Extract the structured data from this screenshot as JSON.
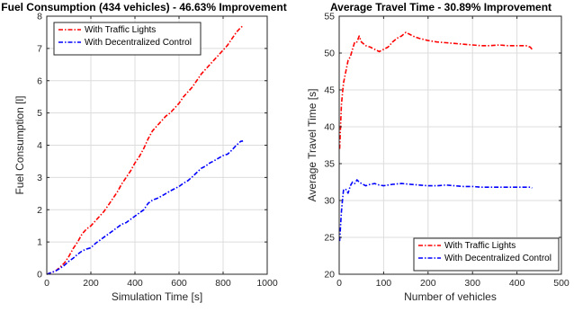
{
  "chart_data": [
    {
      "type": "line",
      "title": "Fuel Consumption (434 vehicles) - 46.63% Improvement",
      "xlabel": "Simulation Time [s]",
      "ylabel": "Fuel Consumption [l]",
      "xlim": [
        0,
        1000
      ],
      "ylim": [
        0,
        8
      ],
      "xticks": [
        0,
        200,
        400,
        600,
        800,
        1000
      ],
      "yticks": [
        0,
        1,
        2,
        3,
        4,
        5,
        6,
        7,
        8
      ],
      "grid": true,
      "legend_position": "top-left",
      "series": [
        {
          "name": "With Traffic Lights",
          "color": "#ff0000",
          "x": [
            0,
            20,
            40,
            60,
            80,
            100,
            120,
            140,
            160,
            180,
            200,
            220,
            240,
            260,
            280,
            300,
            320,
            340,
            360,
            380,
            400,
            420,
            440,
            460,
            480,
            500,
            520,
            540,
            560,
            580,
            600,
            620,
            640,
            660,
            680,
            700,
            720,
            740,
            760,
            780,
            800,
            820,
            840,
            860,
            880,
            890
          ],
          "y": [
            0,
            0.05,
            0.1,
            0.22,
            0.35,
            0.55,
            0.8,
            1.0,
            1.25,
            1.4,
            1.5,
            1.65,
            1.8,
            1.95,
            2.15,
            2.35,
            2.55,
            2.8,
            3.0,
            3.2,
            3.45,
            3.65,
            3.9,
            4.2,
            4.45,
            4.6,
            4.75,
            4.9,
            5.0,
            5.15,
            5.3,
            5.5,
            5.65,
            5.8,
            6.0,
            6.2,
            6.35,
            6.5,
            6.65,
            6.8,
            6.95,
            7.1,
            7.3,
            7.5,
            7.65,
            7.7
          ]
        },
        {
          "name": "With Decentralized Control",
          "color": "#0000ff",
          "x": [
            0,
            20,
            40,
            60,
            80,
            100,
            120,
            140,
            160,
            180,
            200,
            220,
            240,
            260,
            280,
            300,
            320,
            340,
            360,
            380,
            400,
            420,
            440,
            460,
            480,
            500,
            520,
            540,
            560,
            580,
            600,
            620,
            640,
            660,
            680,
            700,
            720,
            740,
            760,
            780,
            800,
            820,
            840,
            860,
            880,
            890
          ],
          "y": [
            0,
            0.05,
            0.1,
            0.18,
            0.28,
            0.4,
            0.5,
            0.62,
            0.72,
            0.78,
            0.82,
            0.95,
            1.05,
            1.15,
            1.25,
            1.35,
            1.45,
            1.55,
            1.6,
            1.7,
            1.8,
            1.9,
            2.0,
            2.2,
            2.3,
            2.35,
            2.42,
            2.5,
            2.58,
            2.65,
            2.72,
            2.82,
            2.9,
            3.02,
            3.15,
            3.28,
            3.35,
            3.45,
            3.52,
            3.6,
            3.68,
            3.72,
            3.85,
            4.0,
            4.12,
            4.13
          ]
        }
      ]
    },
    {
      "type": "line",
      "title": "Average Travel Time - 30.89% Improvement",
      "xlabel": "Number of vehicles",
      "ylabel": "Average Travel Time [s]",
      "xlim": [
        0,
        500
      ],
      "ylim": [
        20,
        55
      ],
      "xticks": [
        0,
        100,
        200,
        300,
        400,
        500
      ],
      "yticks": [
        20,
        25,
        30,
        35,
        40,
        45,
        50,
        55
      ],
      "grid": true,
      "legend_position": "bottom-right",
      "series": [
        {
          "name": "With Traffic Lights",
          "color": "#ff0000",
          "x": [
            1,
            3,
            5,
            8,
            10,
            15,
            20,
            25,
            30,
            35,
            40,
            45,
            50,
            60,
            70,
            80,
            90,
            100,
            110,
            120,
            130,
            140,
            150,
            160,
            170,
            180,
            200,
            220,
            240,
            260,
            280,
            300,
            320,
            340,
            360,
            380,
            400,
            420,
            430,
            434
          ],
          "y": [
            37.0,
            40.0,
            43.0,
            45.0,
            46.0,
            47.5,
            49.0,
            49.5,
            50.5,
            51.5,
            51.5,
            52.3,
            51.5,
            51.0,
            50.8,
            50.5,
            50.2,
            50.5,
            50.8,
            51.5,
            52.0,
            52.3,
            52.8,
            52.5,
            52.2,
            52.0,
            51.7,
            51.5,
            51.4,
            51.3,
            51.2,
            51.1,
            51.0,
            51.0,
            51.1,
            51.0,
            51.0,
            51.0,
            50.8,
            50.5
          ]
        },
        {
          "name": "With Decentralized Control",
          "color": "#0000ff",
          "x": [
            1,
            3,
            5,
            8,
            10,
            15,
            20,
            25,
            30,
            35,
            40,
            45,
            50,
            60,
            70,
            80,
            90,
            100,
            120,
            140,
            160,
            180,
            200,
            220,
            240,
            260,
            280,
            300,
            320,
            340,
            360,
            380,
            400,
            420,
            430,
            434
          ],
          "y": [
            24.5,
            26.5,
            28.5,
            30.5,
            31.5,
            31.5,
            31.0,
            32.0,
            32.5,
            32.3,
            32.8,
            32.5,
            32.3,
            32.0,
            32.2,
            32.3,
            32.1,
            32.0,
            32.2,
            32.3,
            32.2,
            32.1,
            32.0,
            32.0,
            32.1,
            32.0,
            31.9,
            31.9,
            31.8,
            31.8,
            31.8,
            31.8,
            31.8,
            31.8,
            31.8,
            31.7
          ]
        }
      ]
    }
  ]
}
